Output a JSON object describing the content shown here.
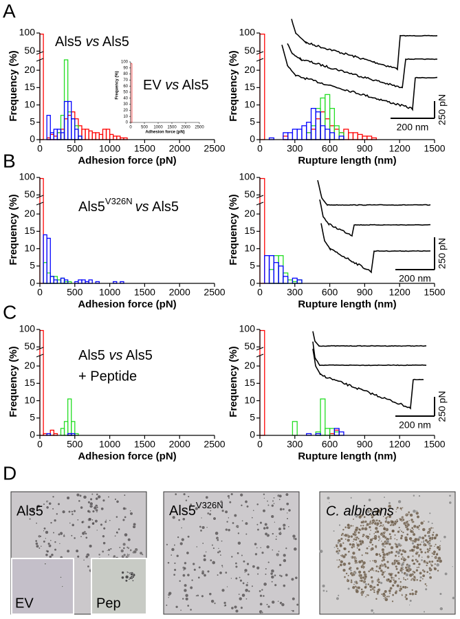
{
  "panels": [
    "A",
    "B",
    "C",
    "D"
  ],
  "chart_data": [
    {
      "type": "histogram",
      "annotation": [
        "Als5",
        "vs",
        "Als5"
      ],
      "xlabel": "Adhesion force (pN)",
      "ylabel": "Frequency (%)",
      "xlim": [
        0,
        2500
      ],
      "xticks": [
        0,
        500,
        1000,
        1500,
        2000,
        2500
      ],
      "ylim": [
        0,
        100
      ],
      "yticks": [
        0,
        5,
        10,
        15,
        20,
        50,
        100
      ],
      "ybreak": [
        23,
        45
      ],
      "bins": [
        0,
        50,
        100,
        150,
        200,
        250,
        300,
        350,
        400,
        450,
        500,
        550,
        600,
        650,
        700,
        750,
        800,
        850,
        900,
        950,
        1000,
        1050,
        1100,
        1150,
        1200,
        1250
      ],
      "series": [
        {
          "color": "#ff0000",
          "values": [
            97,
            0,
            0.5,
            1.5,
            1,
            2,
            3,
            6,
            7,
            8,
            6,
            4,
            3,
            3,
            2.5,
            2,
            2,
            1.5,
            3,
            3,
            1.5,
            1,
            1,
            0.5,
            0.5
          ]
        },
        {
          "color": "#22dd22",
          "values": [
            0,
            0,
            0,
            0,
            0,
            2,
            7,
            23,
            8,
            6,
            4,
            1,
            0,
            0,
            0,
            0,
            0,
            0,
            0,
            0,
            0,
            0,
            0,
            0,
            0
          ]
        },
        {
          "color": "#0000ff",
          "values": [
            0,
            0,
            7,
            2,
            3,
            3,
            2,
            11,
            11,
            6,
            3,
            1,
            0,
            0,
            0,
            0,
            0,
            0,
            0,
            0,
            0,
            0,
            0,
            0,
            0
          ]
        }
      ]
    },
    {
      "type": "histogram",
      "annotation": [
        "EV",
        "vs",
        "Als5"
      ],
      "xlabel": "Adhesion force (pN)",
      "ylabel": "Frequency (%)",
      "xlim": [
        0,
        2500
      ],
      "xticks": [
        0,
        500,
        1000,
        1500,
        2000,
        2500
      ],
      "ylim": [
        0,
        100
      ],
      "yticks": [
        0,
        10,
        20,
        30,
        40,
        50,
        60,
        70,
        80,
        90,
        100
      ],
      "bins": [
        0,
        50
      ],
      "series": [
        {
          "color": "#ff0000",
          "values": [
            97
          ]
        }
      ]
    },
    {
      "type": "histogram",
      "xlabel": "Rupture length (nm)",
      "ylabel": "Frequency (%)",
      "xlim": [
        0,
        1500
      ],
      "xticks": [
        0,
        300,
        600,
        900,
        1200,
        1500
      ],
      "ylim": [
        0,
        100
      ],
      "yticks": [
        0,
        5,
        10,
        15,
        20,
        50,
        100
      ],
      "ybreak": [
        23,
        45
      ],
      "bins": [
        0,
        40,
        80,
        120,
        160,
        200,
        240,
        280,
        320,
        360,
        400,
        440,
        480,
        520,
        560,
        600,
        640,
        680,
        720,
        760,
        800,
        840,
        880,
        920,
        960,
        1000
      ],
      "series": [
        {
          "color": "#ff0000",
          "values": [
            97,
            0,
            0,
            0,
            0,
            1,
            0,
            0,
            0,
            0,
            2,
            3,
            6,
            8,
            6,
            4,
            3,
            2,
            3,
            2,
            2,
            1.5,
            1,
            1,
            0.5
          ]
        },
        {
          "color": "#22dd22",
          "values": [
            0,
            0,
            0,
            0,
            0,
            0,
            0,
            0,
            0,
            0,
            2,
            4,
            9,
            12,
            13,
            9,
            4,
            2,
            0,
            0,
            0,
            0,
            0,
            0,
            0
          ]
        },
        {
          "color": "#0000ff",
          "values": [
            0,
            0,
            0.5,
            0,
            0,
            2,
            2,
            3,
            3,
            4,
            5,
            9,
            8,
            4,
            3,
            2,
            0,
            1,
            0,
            0,
            0,
            0,
            0,
            0,
            0
          ]
        }
      ]
    },
    {
      "type": "histogram",
      "annotation": [
        "Als5",
        "V326N",
        "vs",
        "Als5"
      ],
      "xlabel": "Adhesion force (pN)",
      "ylabel": "Frequency (%)",
      "xlim": [
        0,
        2500
      ],
      "xticks": [
        0,
        500,
        1000,
        1500,
        2000,
        2500
      ],
      "ylim": [
        0,
        100
      ],
      "yticks": [
        0,
        5,
        10,
        15,
        20,
        50,
        100
      ],
      "ybreak": [
        23,
        45
      ],
      "bins": [
        0,
        50,
        100,
        150,
        200,
        250,
        300,
        350,
        400,
        450,
        500,
        550,
        600,
        650,
        700,
        750,
        800,
        850,
        900,
        950,
        1000,
        1050,
        1100,
        1150,
        1200,
        1250
      ],
      "series": [
        {
          "color": "#ff0000",
          "values": [
            97,
            0,
            0,
            0,
            0,
            0,
            0,
            0,
            0,
            0,
            0,
            0,
            0,
            0,
            0,
            0,
            0,
            0,
            0,
            0,
            0,
            0,
            0,
            0,
            0
          ]
        },
        {
          "color": "#22dd22",
          "values": [
            0,
            6,
            3,
            2,
            2,
            1,
            1.5,
            0.5,
            0.5,
            0,
            0,
            0,
            0,
            0,
            0,
            0,
            0,
            0,
            0,
            0,
            0,
            0,
            0,
            0,
            0
          ]
        },
        {
          "color": "#0000ff",
          "values": [
            0,
            14,
            13,
            2,
            1,
            0,
            1.5,
            1,
            0,
            0,
            0.5,
            1,
            1,
            0.5,
            1,
            0,
            0.5,
            0,
            0,
            0,
            0,
            0.5,
            0,
            0.5,
            0
          ]
        }
      ]
    },
    {
      "type": "histogram",
      "xlabel": "Rupture length (nm)",
      "ylabel": "Frequency (%)",
      "xlim": [
        0,
        1500
      ],
      "xticks": [
        0,
        300,
        600,
        900,
        1200,
        1500
      ],
      "ylim": [
        0,
        100
      ],
      "yticks": [
        0,
        5,
        10,
        15,
        20,
        50,
        100
      ],
      "ybreak": [
        23,
        45
      ],
      "bins": [
        0,
        40,
        80,
        120,
        160,
        200,
        240,
        280,
        320,
        360,
        400,
        440,
        480,
        520,
        560,
        600,
        640,
        680,
        720,
        760,
        800,
        840,
        880,
        920,
        960,
        1000
      ],
      "series": [
        {
          "color": "#ff0000",
          "values": [
            97,
            0,
            0,
            0,
            0,
            0,
            0,
            0,
            0,
            0,
            0,
            0,
            0,
            0,
            0,
            0,
            0,
            0,
            0,
            0,
            0,
            0,
            0,
            0,
            0
          ]
        },
        {
          "color": "#22dd22",
          "values": [
            0,
            0,
            4,
            8,
            8,
            3,
            1,
            0.5,
            1,
            0,
            0,
            0,
            0,
            0,
            0,
            0,
            0,
            0,
            0,
            0,
            0,
            0,
            0,
            0,
            0
          ]
        },
        {
          "color": "#0000ff",
          "values": [
            0,
            8,
            8,
            6,
            5,
            2,
            0,
            1.5,
            1,
            0,
            0,
            0,
            0,
            0,
            0,
            0,
            0,
            0,
            0,
            0,
            0,
            0,
            0,
            0,
            0
          ]
        }
      ]
    },
    {
      "type": "histogram",
      "annotation": [
        "Als5",
        "vs",
        "Als5",
        "+ Peptide"
      ],
      "xlabel": "Adhesion force (pN)",
      "ylabel": "Frequency (%)",
      "xlim": [
        0,
        2500
      ],
      "xticks": [
        0,
        500,
        1000,
        1500,
        2000,
        2500
      ],
      "ylim": [
        0,
        100
      ],
      "yticks": [
        0,
        5,
        10,
        15,
        20,
        50,
        100
      ],
      "ybreak": [
        23,
        45
      ],
      "bins": [
        0,
        50,
        100,
        150,
        200,
        250,
        300,
        350,
        400,
        450,
        500,
        550,
        600,
        650,
        700,
        750,
        800,
        850,
        900,
        950,
        1000,
        1050,
        1100,
        1150,
        1200,
        1250
      ],
      "series": [
        {
          "color": "#ff0000",
          "values": [
            97,
            0.5,
            0,
            1.5,
            0.5,
            0,
            0,
            0,
            0.5,
            0,
            0,
            0,
            0,
            0,
            0,
            0,
            0,
            0,
            0,
            0,
            0,
            0,
            0,
            0,
            0
          ]
        },
        {
          "color": "#22dd22",
          "values": [
            0,
            0,
            0,
            0,
            0,
            0,
            2,
            4,
            10.5,
            4,
            0.5,
            0,
            0,
            0,
            0,
            0,
            0,
            0,
            0,
            0,
            0,
            0,
            0,
            0,
            0
          ]
        },
        {
          "color": "#0000ff",
          "values": [
            0,
            0,
            0.5,
            0,
            0,
            0,
            0,
            0,
            0.5,
            0.5,
            0,
            0,
            0,
            0,
            0,
            0,
            0,
            0,
            0,
            0,
            0,
            0,
            0,
            0,
            0
          ]
        }
      ]
    },
    {
      "type": "histogram",
      "xlabel": "Rupture length (nm)",
      "ylabel": "Frequency (%)",
      "xlim": [
        0,
        1500
      ],
      "xticks": [
        0,
        300,
        600,
        900,
        1200,
        1500
      ],
      "ylim": [
        0,
        100
      ],
      "yticks": [
        0,
        5,
        10,
        15,
        20,
        50,
        100
      ],
      "ybreak": [
        23,
        45
      ],
      "bins": [
        0,
        40,
        80,
        120,
        160,
        200,
        240,
        280,
        320,
        360,
        400,
        440,
        480,
        520,
        560,
        600,
        640,
        680,
        720,
        760,
        800,
        840,
        880,
        920,
        960,
        1000
      ],
      "series": [
        {
          "color": "#ff0000",
          "values": [
            97,
            0,
            0,
            0,
            0,
            0,
            0,
            0,
            0,
            0,
            0,
            0,
            0,
            0,
            0,
            0.5,
            1.5,
            0,
            0,
            0,
            0,
            0,
            0,
            0,
            0
          ]
        },
        {
          "color": "#22dd22",
          "values": [
            0,
            0,
            0,
            0,
            0,
            0,
            0,
            4,
            0,
            0,
            0,
            0,
            1,
            10.5,
            2,
            2,
            1,
            0,
            0,
            0,
            0,
            0,
            0,
            0,
            0
          ]
        },
        {
          "color": "#0000ff",
          "values": [
            0,
            0,
            0,
            0,
            0,
            0,
            0,
            0,
            0,
            0,
            0.5,
            0,
            0.5,
            0,
            0,
            0,
            2,
            1,
            0,
            0,
            0,
            0,
            0,
            0,
            0
          ]
        }
      ]
    }
  ],
  "force_curves": [
    {
      "force_scale": "250 pN",
      "length_scale": "200 nm"
    },
    {
      "force_scale": "250 pN",
      "length_scale": "200 nm"
    },
    {
      "force_scale": "250 pN",
      "length_scale": "200 nm"
    }
  ],
  "micrographs": [
    {
      "label": "Als5",
      "insets": [
        "EV",
        "Pep"
      ]
    },
    {
      "label": "Als5",
      "sup": "V326N"
    },
    {
      "label": "C. albicans"
    }
  ]
}
